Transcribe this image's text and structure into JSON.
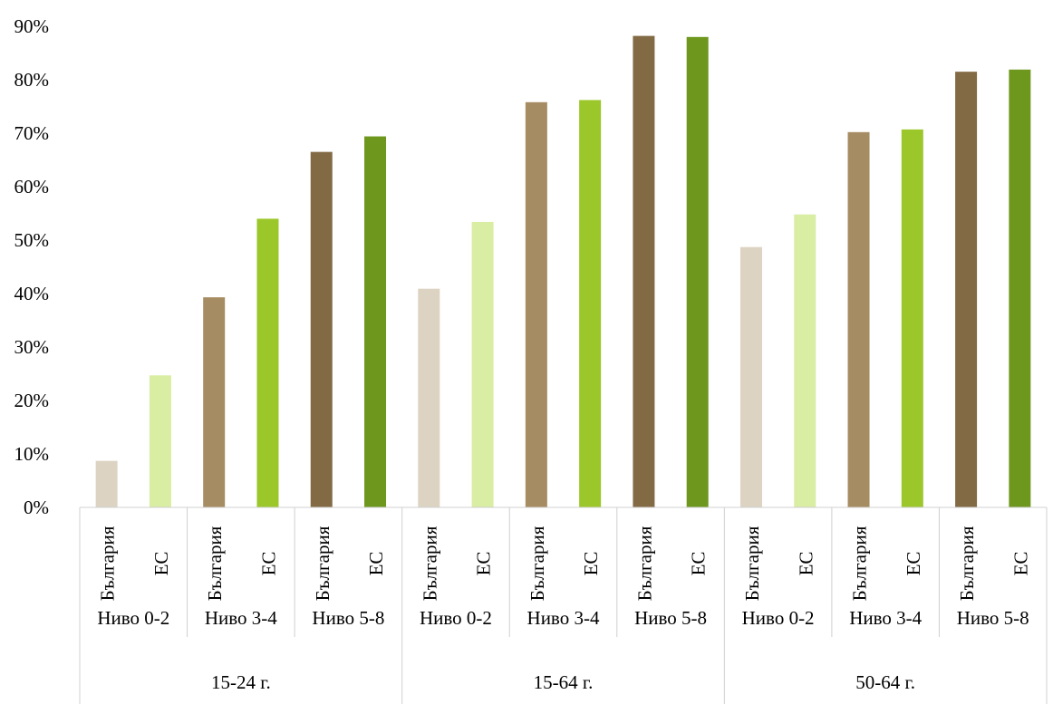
{
  "chart_data": {
    "type": "bar",
    "yaxis": {
      "min": 0,
      "max": 90,
      "step": 10,
      "format": "percent"
    },
    "grid": false,
    "legend": "none",
    "tick_labels": [
      "0%",
      "10%",
      "20%",
      "30%",
      "40%",
      "50%",
      "60%",
      "70%",
      "80%",
      "90%"
    ],
    "groups": [
      {
        "label": "15-24 г.",
        "levels": [
          {
            "label": "Ниво 0-2",
            "bars": [
              {
                "label": "България",
                "value": 8.7,
                "color": "#ddd3c3"
              },
              {
                "label": "ЕС",
                "value": 24.7,
                "color": "#d9eda3"
              }
            ]
          },
          {
            "label": "Ниво 3-4",
            "bars": [
              {
                "label": "България",
                "value": 39.3,
                "color": "#a68c62"
              },
              {
                "label": "ЕС",
                "value": 54.0,
                "color": "#9bc72a"
              }
            ]
          },
          {
            "label": "Ниво 5-8",
            "bars": [
              {
                "label": "България",
                "value": 66.5,
                "color": "#826a45"
              },
              {
                "label": "ЕС",
                "value": 69.4,
                "color": "#6e971e"
              }
            ]
          }
        ]
      },
      {
        "label": "15-64 г.",
        "levels": [
          {
            "label": "Ниво 0-2",
            "bars": [
              {
                "label": "България",
                "value": 40.9,
                "color": "#ddd3c3"
              },
              {
                "label": "ЕС",
                "value": 53.4,
                "color": "#d9eda3"
              }
            ]
          },
          {
            "label": "Ниво 3-4",
            "bars": [
              {
                "label": "България",
                "value": 75.8,
                "color": "#a68c62"
              },
              {
                "label": "ЕС",
                "value": 76.2,
                "color": "#9bc72a"
              }
            ]
          },
          {
            "label": "Ниво 5-8",
            "bars": [
              {
                "label": "България",
                "value": 88.2,
                "color": "#826a45"
              },
              {
                "label": "ЕС",
                "value": 88.0,
                "color": "#6e971e"
              }
            ]
          }
        ]
      },
      {
        "label": "50-64 г.",
        "levels": [
          {
            "label": "Ниво 0-2",
            "bars": [
              {
                "label": "България",
                "value": 48.7,
                "color": "#ddd3c3"
              },
              {
                "label": "ЕС",
                "value": 54.8,
                "color": "#d9eda3"
              }
            ]
          },
          {
            "label": "Ниво 3-4",
            "bars": [
              {
                "label": "България",
                "value": 70.2,
                "color": "#a68c62"
              },
              {
                "label": "ЕС",
                "value": 70.7,
                "color": "#9bc72a"
              }
            ]
          },
          {
            "label": "Ниво 5-8",
            "bars": [
              {
                "label": "България",
                "value": 81.5,
                "color": "#826a45"
              },
              {
                "label": "ЕС",
                "value": 81.9,
                "color": "#6e971e"
              }
            ]
          }
        ]
      }
    ]
  }
}
